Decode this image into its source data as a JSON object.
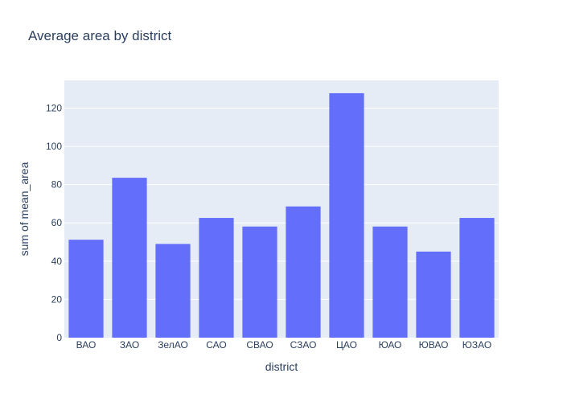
{
  "chart_data": {
    "type": "bar",
    "title": "Average area by district",
    "xlabel": "district",
    "ylabel": "sum of mean_area",
    "categories": [
      "ВАО",
      "ЗАО",
      "ЗелАО",
      "САО",
      "СВАО",
      "СЗАО",
      "ЦАО",
      "ЮАО",
      "ЮВАО",
      "ЮЗАО"
    ],
    "values": [
      51.2,
      83.6,
      49.0,
      62.6,
      58.1,
      68.6,
      127.8,
      58.1,
      45.0,
      62.6
    ],
    "ylim": [
      0,
      134.5
    ],
    "yticks": [
      0,
      20,
      40,
      60,
      80,
      100,
      120
    ],
    "yticklabels": [
      "0",
      "20",
      "40",
      "60",
      "80",
      "100",
      "120"
    ],
    "grid": true,
    "colors": {
      "bar": "#636efa",
      "plot_bg": "#e5ecf6",
      "grid": "#ffffff",
      "text": "#2a3f5f"
    }
  }
}
